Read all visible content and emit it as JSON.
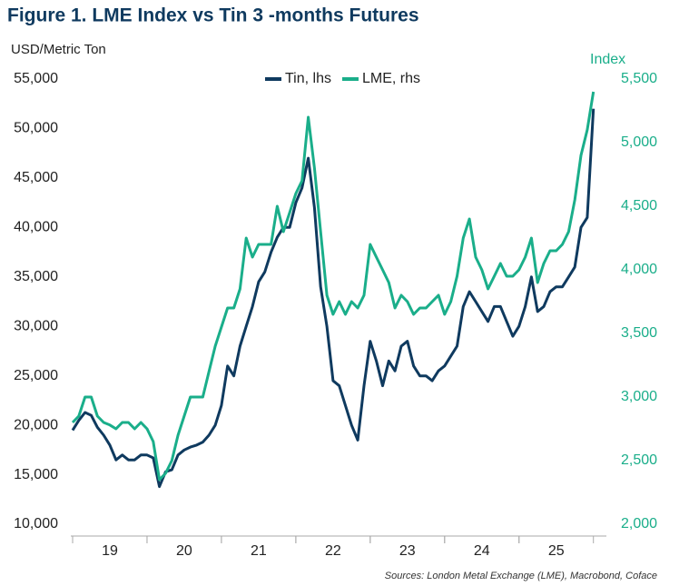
{
  "chart_data": {
    "type": "line",
    "title": "Figure 1. LME Index vs Tin 3 -months Futures",
    "y_label": "USD/Metric Ton",
    "y2_label": "Index",
    "source": "Sources: London Metal Exchange (LME), Macrobond, Coface",
    "x": [
      19,
      19.083,
      19.167,
      19.25,
      19.333,
      19.417,
      19.5,
      19.583,
      19.667,
      19.75,
      19.833,
      19.917,
      20,
      20.083,
      20.167,
      20.25,
      20.333,
      20.417,
      20.5,
      20.583,
      20.667,
      20.75,
      20.833,
      20.917,
      21,
      21.083,
      21.167,
      21.25,
      21.333,
      21.417,
      21.5,
      21.583,
      21.667,
      21.75,
      21.833,
      21.917,
      22,
      22.083,
      22.167,
      22.25,
      22.333,
      22.417,
      22.5,
      22.583,
      22.667,
      22.75,
      22.833,
      22.917,
      23,
      23.083,
      23.167,
      23.25,
      23.333,
      23.417,
      23.5,
      23.583,
      23.667,
      23.75,
      23.833,
      23.917,
      24,
      24.083,
      24.167,
      24.25,
      24.333,
      24.417,
      24.5,
      24.583,
      24.667,
      24.75,
      24.833,
      24.917,
      25,
      25.083,
      25.167,
      25.25,
      25.333,
      25.417,
      25.5,
      25.583,
      25.667,
      25.75,
      25.833,
      25.917,
      26
    ],
    "series": [
      {
        "name": "Tin, lhs",
        "color": "#0f3a5f",
        "values": [
          19500,
          20500,
          21300,
          21000,
          19800,
          19000,
          18000,
          16500,
          17000,
          16500,
          16500,
          17000,
          17000,
          16700,
          13800,
          15300,
          15500,
          17000,
          17500,
          17800,
          18000,
          18300,
          19000,
          20000,
          22000,
          26000,
          25000,
          28000,
          30000,
          32000,
          34500,
          35500,
          37500,
          39000,
          40000,
          40000,
          42500,
          44000,
          47000,
          42000,
          34000,
          30000,
          24500,
          24000,
          22000,
          20000,
          18500,
          24000,
          28500,
          26500,
          24000,
          26500,
          25500,
          28000,
          28500,
          26000,
          25000,
          25000,
          24500,
          25500,
          26000,
          27000,
          28000,
          32000,
          33500,
          32500,
          31500,
          30500,
          32000,
          32000,
          30500,
          29000,
          30000,
          32000,
          35000,
          31500,
          32000,
          33500,
          34000,
          34000,
          35000,
          36000,
          40000,
          41000,
          52000
        ]
      },
      {
        "name": "LME, rhs",
        "color": "#1aae8a",
        "axis": "y2",
        "values": [
          2800,
          2850,
          3000,
          3000,
          2850,
          2800,
          2780,
          2750,
          2800,
          2800,
          2750,
          2800,
          2750,
          2650,
          2350,
          2400,
          2500,
          2700,
          2850,
          3000,
          3000,
          3000,
          3200,
          3400,
          3550,
          3700,
          3700,
          3850,
          4250,
          4100,
          4200,
          4200,
          4200,
          4500,
          4300,
          4450,
          4600,
          4700,
          5200,
          4800,
          4300,
          3800,
          3650,
          3750,
          3650,
          3750,
          3700,
          3800,
          4200,
          4100,
          4000,
          3900,
          3700,
          3800,
          3750,
          3650,
          3700,
          3700,
          3750,
          3800,
          3650,
          3750,
          3950,
          4250,
          4400,
          4100,
          4000,
          3850,
          3950,
          4050,
          3950,
          3950,
          4000,
          4100,
          4250,
          3900,
          4050,
          4150,
          4150,
          4200,
          4300,
          4550,
          4900,
          5100,
          5400
        ]
      }
    ],
    "xlim": [
      19,
      26.15
    ],
    "xticks": [
      {
        "value": 19.5,
        "label": "19"
      },
      {
        "value": 20.5,
        "label": "20"
      },
      {
        "value": 21.5,
        "label": "21"
      },
      {
        "value": 22.5,
        "label": "22"
      },
      {
        "value": 23.5,
        "label": "23"
      },
      {
        "value": 24.5,
        "label": "24"
      },
      {
        "value": 25.5,
        "label": "25"
      }
    ],
    "ylim": [
      10000,
      55000
    ],
    "yticks": [
      {
        "value": 10000,
        "label": "10,000"
      },
      {
        "value": 15000,
        "label": "15,000"
      },
      {
        "value": 20000,
        "label": "20,000"
      },
      {
        "value": 25000,
        "label": "25,000"
      },
      {
        "value": 30000,
        "label": "30,000"
      },
      {
        "value": 35000,
        "label": "35,000"
      },
      {
        "value": 40000,
        "label": "40,000"
      },
      {
        "value": 45000,
        "label": "45,000"
      },
      {
        "value": 50000,
        "label": "50,000"
      },
      {
        "value": 55000,
        "label": "55,000"
      }
    ],
    "y2lim": [
      2000,
      5500
    ],
    "y2ticks": [
      {
        "value": 2000,
        "label": "2,000"
      },
      {
        "value": 2500,
        "label": "2,500"
      },
      {
        "value": 3000,
        "label": "3,000"
      },
      {
        "value": 3500,
        "label": "3,500"
      },
      {
        "value": 4000,
        "label": "4,000"
      },
      {
        "value": 4500,
        "label": "4,500"
      },
      {
        "value": 5000,
        "label": "5,000"
      },
      {
        "value": 5500,
        "label": "5,500"
      }
    ],
    "grid": false,
    "legend": "top"
  }
}
